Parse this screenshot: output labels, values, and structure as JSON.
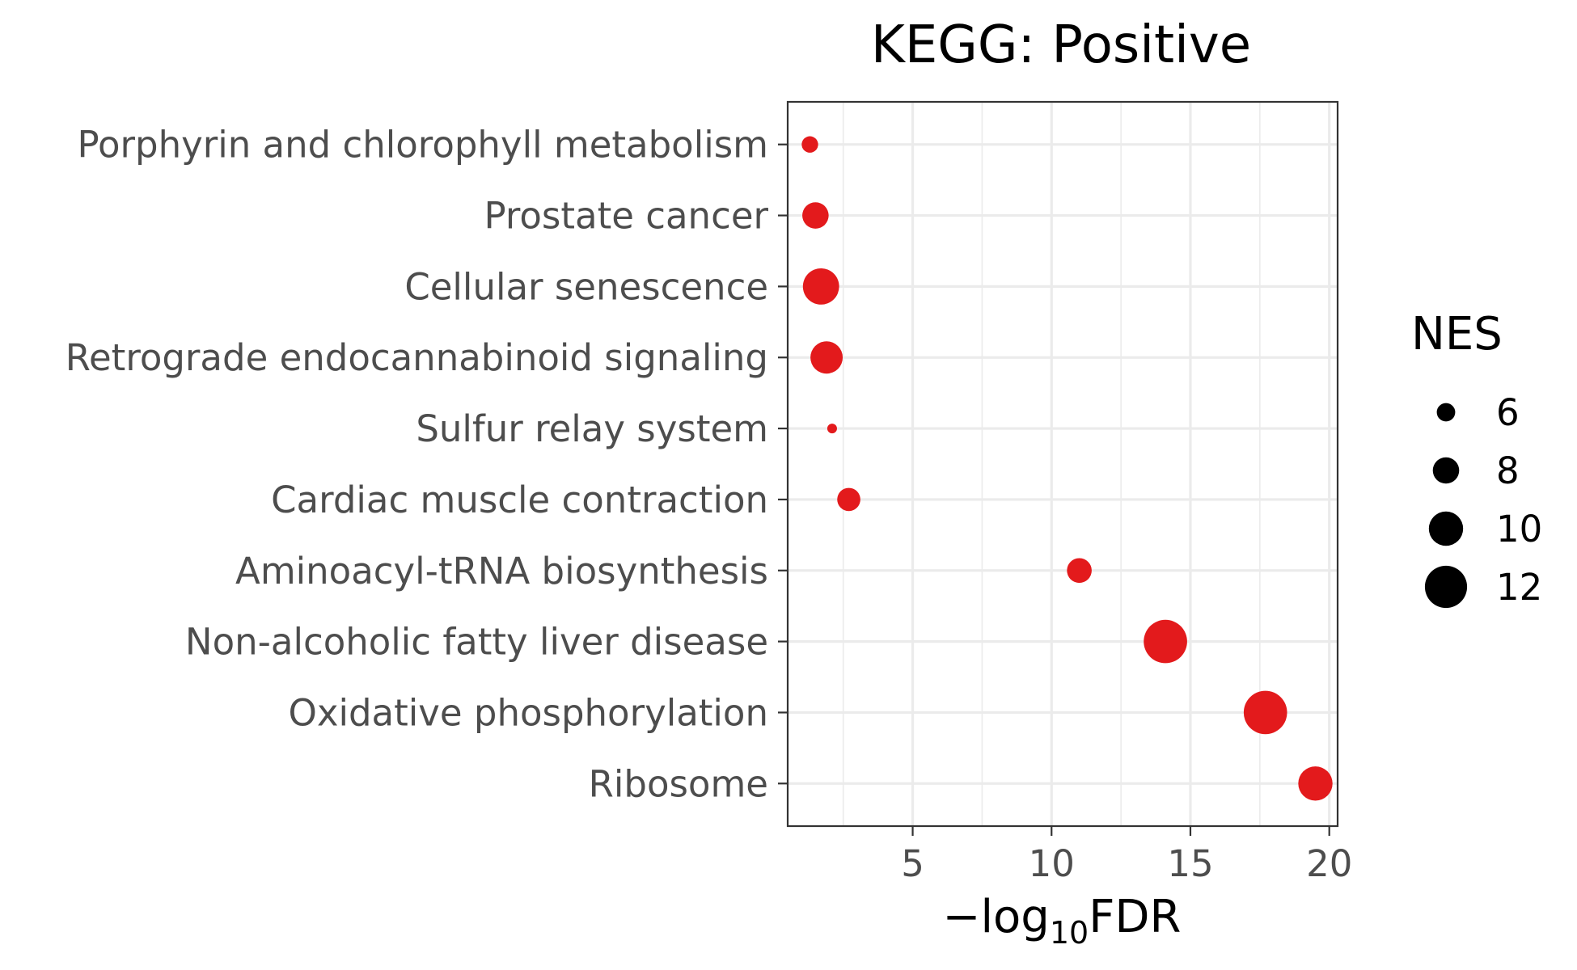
{
  "chart_data": {
    "type": "scatter",
    "title": "KEGG: Positive",
    "xlabel": {
      "prefix": "−log",
      "subscript": "10",
      "suffix": "FDR"
    },
    "ylabel": "",
    "xlim": [
      0.5,
      20.3
    ],
    "xticks": [
      "5",
      "10",
      "15",
      "20"
    ],
    "xtick_values": [
      5,
      10,
      15,
      20
    ],
    "grid": true,
    "point_color": "#e31a1c",
    "categories": [
      "Porphyrin and chlorophyll metabolism",
      "Prostate cancer",
      "Cellular senescence",
      "Retrograde endocannabinoid signaling",
      "Sulfur relay system",
      "Cardiac muscle contraction",
      "Aminoacyl-tRNA biosynthesis",
      "Non-alcoholic fatty liver disease",
      "Oxidative phosphorylation",
      "Ribosome"
    ],
    "points": [
      {
        "category": "Porphyrin and chlorophyll metabolism",
        "x": 1.3,
        "size": 5.5
      },
      {
        "category": "Prostate cancer",
        "x": 1.5,
        "size": 8.0
      },
      {
        "category": "Cellular senescence",
        "x": 1.7,
        "size": 10.5
      },
      {
        "category": "Retrograde endocannabinoid signaling",
        "x": 1.9,
        "size": 9.5
      },
      {
        "category": "Sulfur relay system",
        "x": 2.1,
        "size": 3.8
      },
      {
        "category": "Cardiac muscle contraction",
        "x": 2.7,
        "size": 7.2
      },
      {
        "category": "Aminoacyl-tRNA biosynthesis",
        "x": 11.0,
        "size": 7.6
      },
      {
        "category": "Non-alcoholic fatty liver disease",
        "x": 14.1,
        "size": 12.3
      },
      {
        "category": "Oxidative phosphorylation",
        "x": 17.7,
        "size": 12.3
      },
      {
        "category": "Ribosome",
        "x": 19.5,
        "size": 10.0
      }
    ],
    "legend": {
      "title": "NES",
      "placement": "right",
      "items": [
        {
          "label": "6",
          "value": 6
        },
        {
          "label": "8",
          "value": 8
        },
        {
          "label": "10",
          "value": 10
        },
        {
          "label": "12",
          "value": 12
        }
      ]
    }
  }
}
